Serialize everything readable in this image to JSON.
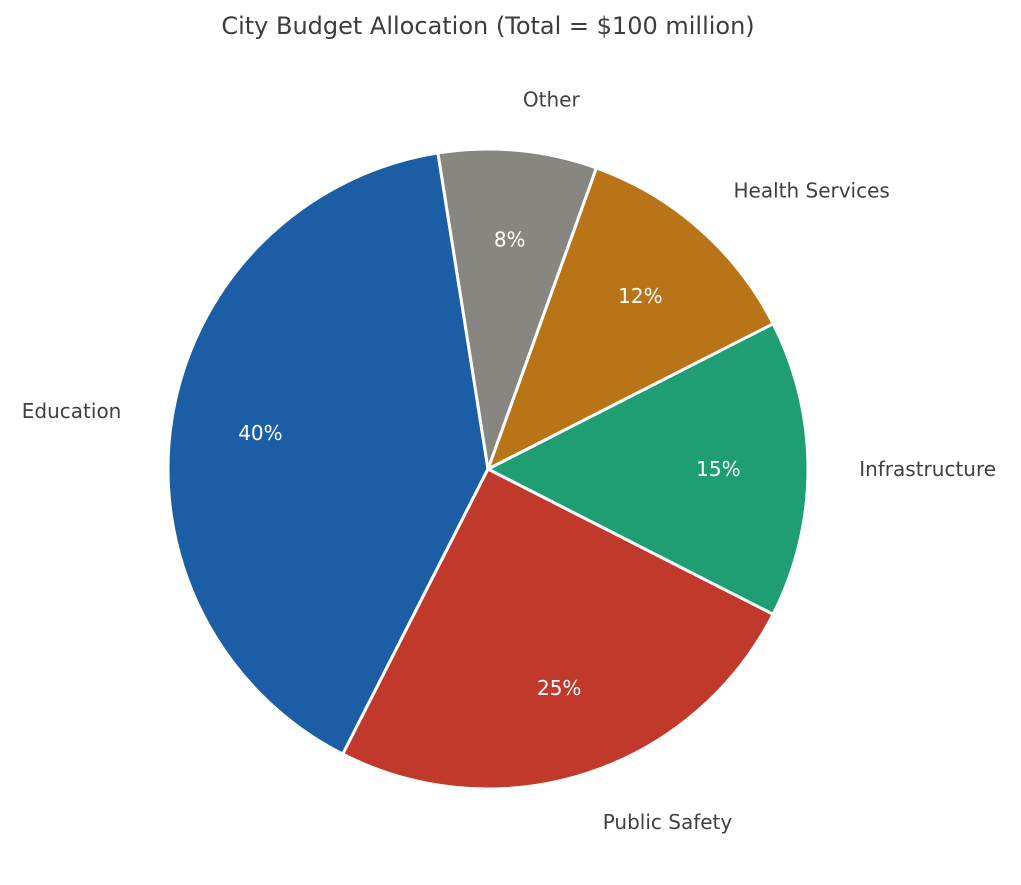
{
  "chart_data": {
    "type": "pie",
    "title": "City Budget Allocation (Total = $100 million)",
    "categories": [
      "Education",
      "Public Safety",
      "Infrastructure",
      "Health Services",
      "Other"
    ],
    "values": [
      40,
      25,
      15,
      12,
      8
    ],
    "percent_labels": [
      "40%",
      "25%",
      "15%",
      "12%",
      "8%"
    ],
    "colors": [
      "#1b5ea6",
      "#c0392b",
      "#1f9e74",
      "#b87416",
      "#878680"
    ],
    "start_angle_deg": 99,
    "direction": "counterclockwise",
    "legend": "none"
  }
}
